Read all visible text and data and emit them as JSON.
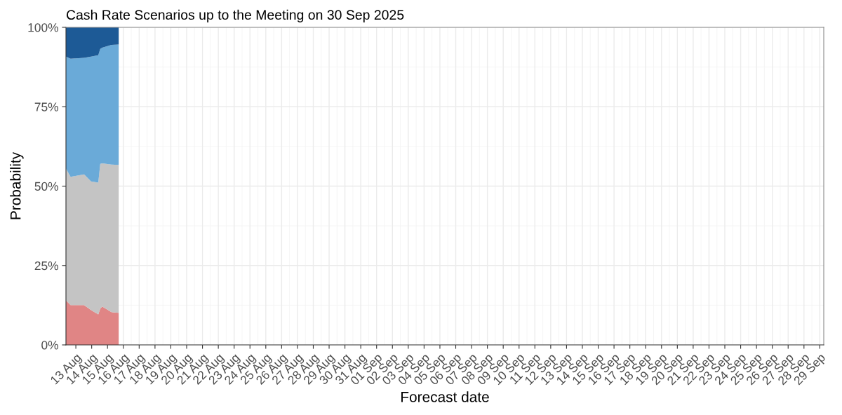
{
  "chart_data": {
    "type": "area",
    "stacked": true,
    "title": "Cash Rate Scenarios up to the Meeting on 30 Sep 2025",
    "xlabel": "Forecast date",
    "ylabel": "Probability",
    "x": [
      "2025-08-12T09:00",
      "2025-08-12T16:00",
      "2025-08-13T12:30",
      "2025-08-13T23:00",
      "2025-08-14T10:00",
      "2025-08-14T13:00",
      "2025-08-14T16:00",
      "2025-08-15T06:00",
      "2025-08-15T17:00"
    ],
    "series": [
      {
        "color": "#e08585",
        "values": [
          14.0,
          12.5,
          12.5,
          11.0,
          9.6,
          11.4,
          12.1,
          10.3,
          10.1
        ]
      },
      {
        "color": "#c4c4c4",
        "values": [
          41.5,
          40.4,
          41.2,
          40.5,
          41.5,
          45.6,
          45.1,
          46.5,
          46.6
        ]
      },
      {
        "color": "#6aaad8",
        "values": [
          35.3,
          37.2,
          36.7,
          39.3,
          40.1,
          36.2,
          36.4,
          37.7,
          37.9
        ]
      },
      {
        "color": "#1d5a96",
        "values": [
          9.2,
          9.9,
          9.6,
          9.2,
          8.8,
          6.8,
          6.4,
          5.5,
          5.4
        ]
      }
    ],
    "xlim": [
      "2025-08-12T09:00",
      "2025-09-29T06:00"
    ],
    "xticks": [
      {
        "value": "2025-08-13",
        "label": "13 Aug"
      },
      {
        "value": "2025-08-14",
        "label": "14 Aug"
      },
      {
        "value": "2025-08-15",
        "label": "15 Aug"
      },
      {
        "value": "2025-08-16",
        "label": "16 Aug"
      },
      {
        "value": "2025-08-17",
        "label": "17 Aug"
      },
      {
        "value": "2025-08-18",
        "label": "18 Aug"
      },
      {
        "value": "2025-08-19",
        "label": "19 Aug"
      },
      {
        "value": "2025-08-20",
        "label": "20 Aug"
      },
      {
        "value": "2025-08-21",
        "label": "21 Aug"
      },
      {
        "value": "2025-08-22",
        "label": "22 Aug"
      },
      {
        "value": "2025-08-23",
        "label": "23 Aug"
      },
      {
        "value": "2025-08-24",
        "label": "24 Aug"
      },
      {
        "value": "2025-08-25",
        "label": "25 Aug"
      },
      {
        "value": "2025-08-26",
        "label": "26 Aug"
      },
      {
        "value": "2025-08-27",
        "label": "27 Aug"
      },
      {
        "value": "2025-08-28",
        "label": "28 Aug"
      },
      {
        "value": "2025-08-29",
        "label": "29 Aug"
      },
      {
        "value": "2025-08-30",
        "label": "30 Aug"
      },
      {
        "value": "2025-08-31",
        "label": "31 Aug"
      },
      {
        "value": "2025-09-01",
        "label": "01 Sep"
      },
      {
        "value": "2025-09-02",
        "label": "02 Sep"
      },
      {
        "value": "2025-09-03",
        "label": "03 Sep"
      },
      {
        "value": "2025-09-04",
        "label": "04 Sep"
      },
      {
        "value": "2025-09-05",
        "label": "05 Sep"
      },
      {
        "value": "2025-09-06",
        "label": "06 Sep"
      },
      {
        "value": "2025-09-07",
        "label": "07 Sep"
      },
      {
        "value": "2025-09-08",
        "label": "08 Sep"
      },
      {
        "value": "2025-09-09",
        "label": "09 Sep"
      },
      {
        "value": "2025-09-10",
        "label": "10 Sep"
      },
      {
        "value": "2025-09-11",
        "label": "11 Sep"
      },
      {
        "value": "2025-09-12",
        "label": "12 Sep"
      },
      {
        "value": "2025-09-13",
        "label": "13 Sep"
      },
      {
        "value": "2025-09-14",
        "label": "14 Sep"
      },
      {
        "value": "2025-09-15",
        "label": "15 Sep"
      },
      {
        "value": "2025-09-16",
        "label": "16 Sep"
      },
      {
        "value": "2025-09-17",
        "label": "17 Sep"
      },
      {
        "value": "2025-09-18",
        "label": "18 Sep"
      },
      {
        "value": "2025-09-19",
        "label": "19 Sep"
      },
      {
        "value": "2025-09-20",
        "label": "20 Sep"
      },
      {
        "value": "2025-09-21",
        "label": "21 Sep"
      },
      {
        "value": "2025-09-22",
        "label": "22 Sep"
      },
      {
        "value": "2025-09-23",
        "label": "23 Sep"
      },
      {
        "value": "2025-09-24",
        "label": "24 Sep"
      },
      {
        "value": "2025-09-25",
        "label": "25 Sep"
      },
      {
        "value": "2025-09-26",
        "label": "26 Sep"
      },
      {
        "value": "2025-09-27",
        "label": "27 Sep"
      },
      {
        "value": "2025-09-28",
        "label": "28 Sep"
      },
      {
        "value": "2025-09-29",
        "label": "29 Sep"
      }
    ],
    "ylim": [
      0,
      100
    ],
    "yticks": [
      {
        "value": 0,
        "label": "0%"
      },
      {
        "value": 25,
        "label": "25%"
      },
      {
        "value": 50,
        "label": "50%"
      },
      {
        "value": 75,
        "label": "75%"
      },
      {
        "value": 100,
        "label": "100%"
      }
    ],
    "grid": true
  }
}
